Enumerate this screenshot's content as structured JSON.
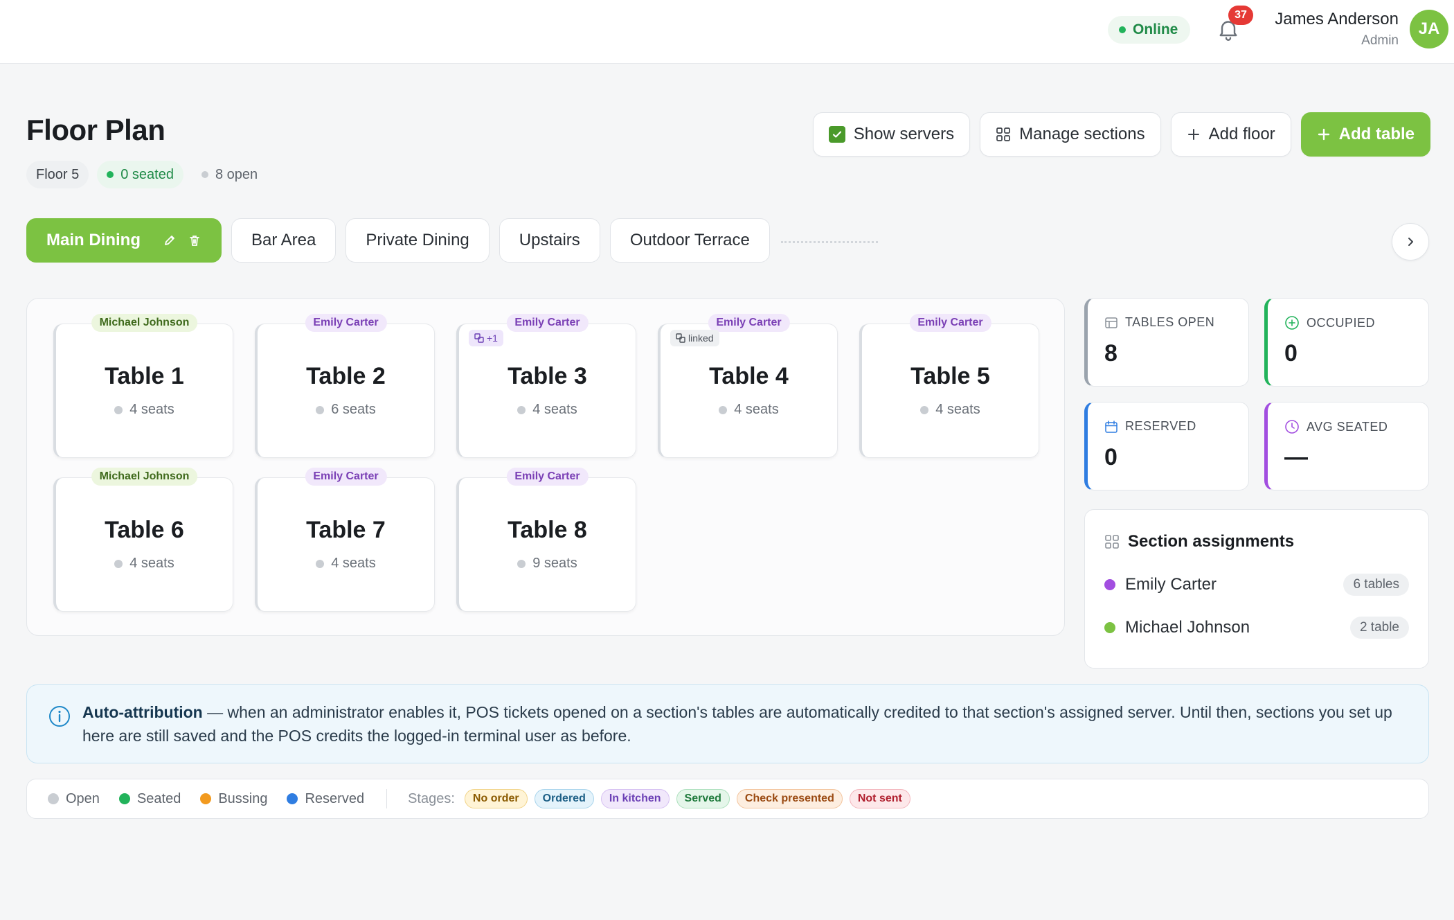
{
  "topbar": {
    "status": "Online",
    "notifications_count": "37",
    "user_name": "James Anderson",
    "user_role": "Admin",
    "avatar_initials": "JA"
  },
  "header": {
    "title": "Floor Plan",
    "floor": "Floor 5",
    "seated": "0 seated",
    "open": "8 open"
  },
  "actions": {
    "show_servers": "Show servers",
    "manage_sections": "Manage sections",
    "add_floor": "Add floor",
    "add_table": "Add table"
  },
  "tabs": [
    "Main Dining",
    "Bar Area",
    "Private Dining",
    "Upstairs",
    "Outdoor Terrace"
  ],
  "tables": [
    {
      "name": "Table 1",
      "seats": "4 seats",
      "server": "Michael Johnson",
      "server_color": "green",
      "link": ""
    },
    {
      "name": "Table 2",
      "seats": "6 seats",
      "server": "Emily Carter",
      "server_color": "purple",
      "link": ""
    },
    {
      "name": "Table 3",
      "seats": "4 seats",
      "server": "Emily Carter",
      "server_color": "purple",
      "link": "+1"
    },
    {
      "name": "Table 4",
      "seats": "4 seats",
      "server": "Emily Carter",
      "server_color": "purple",
      "link": "linked"
    },
    {
      "name": "Table 5",
      "seats": "4 seats",
      "server": "Emily Carter",
      "server_color": "purple",
      "link": ""
    },
    {
      "name": "Table 6",
      "seats": "4 seats",
      "server": "Michael Johnson",
      "server_color": "green",
      "link": ""
    },
    {
      "name": "Table 7",
      "seats": "4 seats",
      "server": "Emily Carter",
      "server_color": "purple",
      "link": ""
    },
    {
      "name": "Table 8",
      "seats": "9 seats",
      "server": "Emily Carter",
      "server_color": "purple",
      "link": ""
    }
  ],
  "stats": {
    "tables_open": {
      "label": "TABLES OPEN",
      "value": "8",
      "color": "#9aa3ad"
    },
    "occupied": {
      "label": "OCCUPIED",
      "value": "0",
      "color": "#22b35b"
    },
    "reserved": {
      "label": "RESERVED",
      "value": "0",
      "color": "#2f7de1"
    },
    "avg_seated": {
      "label": "AVG SEATED",
      "value": "—",
      "color": "#a24ee0"
    }
  },
  "assignments": {
    "title": "Section assignments",
    "rows": [
      {
        "name": "Emily Carter",
        "count": "6 tables",
        "color": "#a24ee0"
      },
      {
        "name": "Michael Johnson",
        "count": "2 table",
        "color": "#7cc242"
      }
    ]
  },
  "banner": {
    "bold": "Auto-attribution",
    "text": " — when an administrator enables it, POS tickets opened on a section's tables are automatically credited to that section's assigned server. Until then, sections you set up here are still saved and the POS credits the logged-in terminal user as before."
  },
  "legend": {
    "statuses": [
      {
        "label": "Open",
        "color": "#c9cdd2"
      },
      {
        "label": "Seated",
        "color": "#22b35b"
      },
      {
        "label": "Bussing",
        "color": "#f29a1f"
      },
      {
        "label": "Reserved",
        "color": "#2f7de1"
      }
    ],
    "stages_label": "Stages:",
    "stages": [
      {
        "label": "No order",
        "bg": "#fff4d6",
        "fg": "#8a5a00",
        "border": "#f1d489"
      },
      {
        "label": "Ordered",
        "bg": "#e4f3fb",
        "fg": "#1c5f86",
        "border": "#a8d4ec"
      },
      {
        "label": "In kitchen",
        "bg": "#f1e8fb",
        "fg": "#6b3fb5",
        "border": "#d6c0f2"
      },
      {
        "label": "Served",
        "bg": "#e5f6ea",
        "fg": "#1f7a3c",
        "border": "#ade0bd"
      },
      {
        "label": "Check presented",
        "bg": "#fdeee0",
        "fg": "#9a4a12",
        "border": "#f3c49c"
      },
      {
        "label": "Not sent",
        "bg": "#fde8ea",
        "fg": "#b01f2e",
        "border": "#f3b5bc"
      }
    ]
  }
}
